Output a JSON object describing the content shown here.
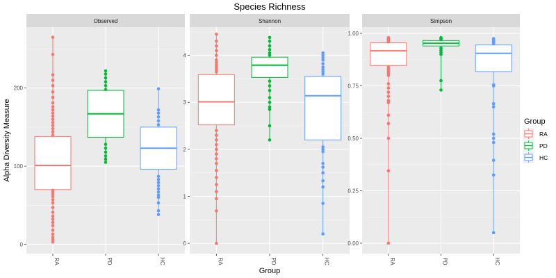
{
  "chart_data": {
    "type": "box",
    "title": "Species Richness",
    "xlabel": "Group",
    "ylabel": "Alpha Diversity Measure",
    "grid": true,
    "legend": {
      "title": "Group",
      "placement": "right",
      "items": [
        {
          "label": "RA",
          "color": "#F8766D"
        },
        {
          "label": "PD",
          "color": "#00BA38"
        },
        {
          "label": "HC",
          "color": "#619CFF"
        }
      ]
    },
    "categories": [
      "RA",
      "PD",
      "HC"
    ],
    "panels": [
      {
        "name": "Observed",
        "ylim": [
          -12,
          278
        ],
        "yticks": [
          0,
          100,
          200
        ],
        "groups": [
          {
            "group": "RA",
            "q1": 70,
            "median": 101,
            "q3": 138,
            "whisker_low": 3,
            "whisker_high": 265,
            "points": [
              3,
              6,
              9,
              13,
              18,
              24,
              28,
              32,
              36,
              41,
              47,
              53,
              57,
              61,
              64,
              67,
              69,
              140,
              144,
              148,
              152,
              156,
              160,
              164,
              168,
              172,
              176,
              181,
              188,
              195,
              203,
              210,
              217,
              243,
              265
            ]
          },
          {
            "group": "PD",
            "q1": 137,
            "median": 167,
            "q3": 197,
            "whisker_low": 105,
            "whisker_high": 222,
            "points": [
              105,
              109,
              113,
              118,
              123,
              128,
              198,
              203,
              208,
              213,
              218,
              222
            ]
          },
          {
            "group": "HC",
            "q1": 96,
            "median": 123,
            "q3": 150,
            "whisker_low": 38,
            "whisker_high": 199,
            "points": [
              38,
              43,
              53,
              60,
              63,
              67,
              71,
              75,
              79,
              83,
              87,
              153,
              158,
              163,
              168,
              172,
              199
            ]
          }
        ]
      },
      {
        "name": "Shannon",
        "ylim": [
          -0.22,
          4.6
        ],
        "yticks": [
          0,
          1,
          2,
          3,
          4
        ],
        "groups": [
          {
            "group": "RA",
            "q1": 2.52,
            "median": 3.01,
            "q3": 3.59,
            "whisker_low": 0.0,
            "whisker_high": 4.45,
            "points": [
              0.0,
              0.69,
              0.95,
              1.1,
              1.25,
              1.4,
              1.55,
              1.7,
              1.8,
              1.9,
              2.0,
              2.1,
              2.2,
              2.3,
              2.4,
              3.65,
              3.7,
              3.75,
              3.8,
              3.85,
              3.9,
              4.0,
              4.1,
              4.2,
              4.3,
              4.45
            ]
          },
          {
            "group": "PD",
            "q1": 3.53,
            "median": 3.79,
            "q3": 3.96,
            "whisker_low": 2.2,
            "whisker_high": 4.38,
            "points": [
              2.2,
              2.5,
              2.85,
              2.9,
              3.0,
              3.1,
              3.25,
              3.35,
              3.45,
              4.0,
              4.05,
              4.12,
              4.2,
              4.3,
              4.38
            ]
          },
          {
            "group": "HC",
            "q1": 2.2,
            "median": 3.14,
            "q3": 3.55,
            "whisker_low": 0.2,
            "whisker_high": 4.05,
            "points": [
              0.2,
              0.85,
              1.2,
              1.33,
              1.5,
              1.62,
              1.7,
              1.95,
              2.0,
              2.05,
              3.6,
              3.65,
              3.7,
              3.75,
              3.82,
              3.9,
              3.95,
              4.0,
              4.05
            ]
          }
        ]
      },
      {
        "name": "Simpson",
        "ylim": [
          -0.05,
          1.03
        ],
        "yticks": [
          0.0,
          0.25,
          0.5,
          0.75,
          1.0
        ],
        "groups": [
          {
            "group": "RA",
            "q1": 0.847,
            "median": 0.917,
            "q3": 0.955,
            "whisker_low": 0.0,
            "whisker_high": 0.98,
            "points": [
              0.0,
              0.345,
              0.5,
              0.57,
              0.61,
              0.67,
              0.68,
              0.7,
              0.72,
              0.74,
              0.76,
              0.8,
              0.81,
              0.82,
              0.83,
              0.84,
              0.96,
              0.965,
              0.97,
              0.975,
              0.98
            ]
          },
          {
            "group": "PD",
            "q1": 0.94,
            "median": 0.953,
            "q3": 0.966,
            "whisker_low": 0.73,
            "whisker_high": 0.98,
            "points": [
              0.73,
              0.775,
              0.9,
              0.91,
              0.92,
              0.93,
              0.97,
              0.975,
              0.98
            ]
          },
          {
            "group": "HC",
            "q1": 0.818,
            "median": 0.905,
            "q3": 0.945,
            "whisker_low": 0.05,
            "whisker_high": 0.975,
            "points": [
              0.05,
              0.325,
              0.395,
              0.48,
              0.5,
              0.52,
              0.65,
              0.665,
              0.75,
              0.755,
              0.95,
              0.955,
              0.96,
              0.965,
              0.97,
              0.975
            ]
          }
        ]
      }
    ]
  }
}
